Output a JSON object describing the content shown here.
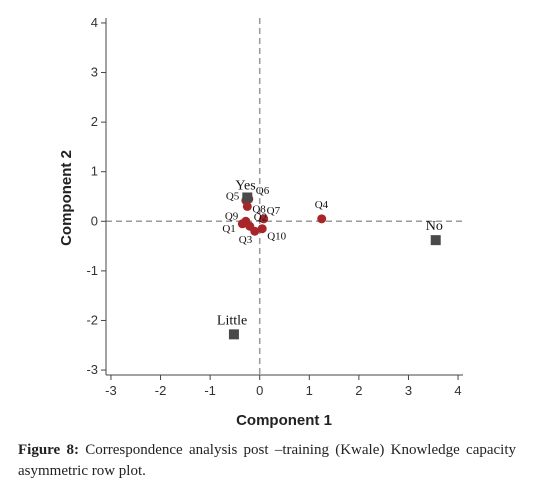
{
  "chart_data": {
    "type": "scatter",
    "xlabel": "Component 1",
    "ylabel": "Component 2",
    "xlim": [
      -3.1,
      4.1
    ],
    "ylim": [
      -3.1,
      4.1
    ],
    "xticks": [
      "-3",
      "-2",
      "-1",
      "0",
      "1",
      "2",
      "3",
      "4"
    ],
    "yticks": [
      "-3",
      "-2",
      "-1",
      "0",
      "1",
      "2",
      "3",
      "4"
    ],
    "grid": false,
    "reference_lines": {
      "x": 0,
      "y": 0,
      "style": "dashed",
      "color": "#9a9a9a"
    },
    "series": [
      {
        "marker": "circle",
        "color": "#a8262a",
        "points": [
          {
            "label": "Q1",
            "x": -0.35,
            "y": -0.05
          },
          {
            "label": "Q2",
            "x": -0.2,
            "y": -0.1
          },
          {
            "label": "Q3",
            "x": -0.1,
            "y": -0.2
          },
          {
            "label": "Q4",
            "x": 1.25,
            "y": 0.05
          },
          {
            "label": "Q5",
            "x": -0.28,
            "y": 0.42
          },
          {
            "label": "Q6",
            "x": -0.22,
            "y": 0.45
          },
          {
            "label": "Q7",
            "x": 0.08,
            "y": 0.05
          },
          {
            "label": "Q8",
            "x": -0.25,
            "y": 0.3
          },
          {
            "label": "Q9",
            "x": -0.28,
            "y": 0.0
          },
          {
            "label": "Q10",
            "x": 0.05,
            "y": -0.15
          }
        ]
      },
      {
        "marker": "square",
        "color": "#4a4a4a",
        "points": [
          {
            "label": "Yes",
            "x": -0.25,
            "y": 0.48
          },
          {
            "label": "No",
            "x": 3.55,
            "y": -0.38
          },
          {
            "label": "Little",
            "x": -0.52,
            "y": -2.28
          }
        ]
      }
    ]
  },
  "caption": {
    "lead": "Figure 8:",
    "text": " Correspondence analysis post –training (Kwale) Knowledge capacity asymmetric row plot."
  }
}
